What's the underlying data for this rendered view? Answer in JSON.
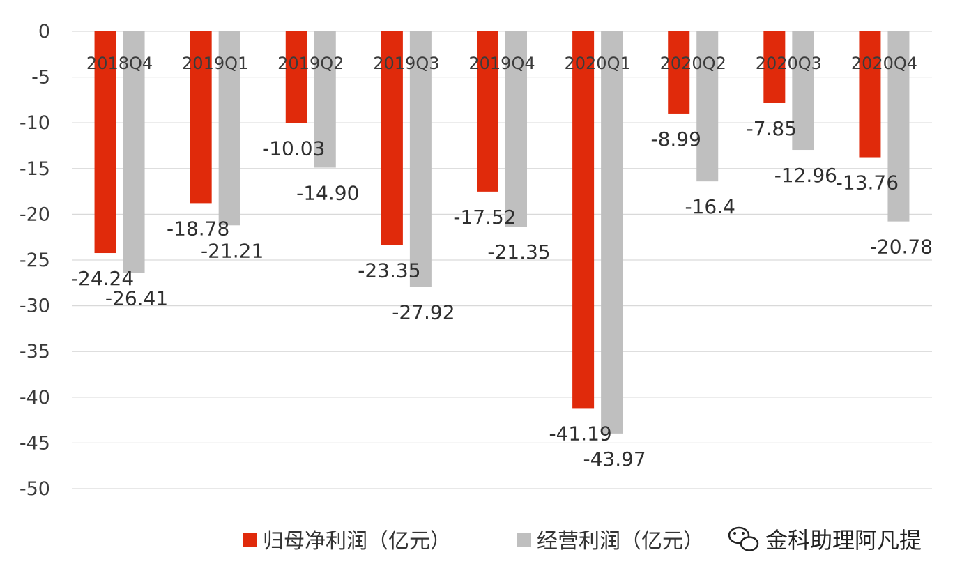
{
  "chart_data": {
    "type": "bar",
    "categories": [
      "2018Q4",
      "2019Q1",
      "2019Q2",
      "2019Q3",
      "2019Q4",
      "2020Q1",
      "2020Q2",
      "2020Q3",
      "2020Q4"
    ],
    "series": [
      {
        "name": "归母净利润（亿元）",
        "color": "#e02a0b",
        "values": [
          -24.24,
          -18.78,
          -10.03,
          -23.35,
          -17.52,
          -41.19,
          -8.99,
          -7.85,
          -13.76
        ],
        "labels": [
          "-24.24",
          "-18.78",
          "-10.03",
          "-23.35",
          "-17.52",
          "-41.19",
          "-8.99",
          "-7.85",
          "-13.76"
        ]
      },
      {
        "name": "经营利润（亿元）",
        "color": "#bfbfbf",
        "values": [
          -26.41,
          -21.21,
          -14.9,
          -27.92,
          -21.35,
          -43.97,
          -16.4,
          -12.96,
          -20.78
        ],
        "labels": [
          "-26.41",
          "-21.21",
          "-14.90",
          "-27.92",
          "-21.35",
          "-43.97",
          "-16.4",
          "-12.96",
          "-20.78"
        ]
      }
    ],
    "ylim": [
      -50,
      0
    ],
    "yticks": [
      "0",
      "-5",
      "-10",
      "-15",
      "-20",
      "-25",
      "-30",
      "-35",
      "-40",
      "-45",
      "-50"
    ],
    "ytick_values": [
      0,
      -5,
      -10,
      -15,
      -20,
      -25,
      -30,
      -35,
      -40,
      -45,
      -50
    ],
    "grid": true,
    "legend": "bottom",
    "title": "",
    "xlabel": "",
    "ylabel": ""
  },
  "watermark": {
    "text": "金科助理阿凡提",
    "icon": "wechat-icon"
  }
}
